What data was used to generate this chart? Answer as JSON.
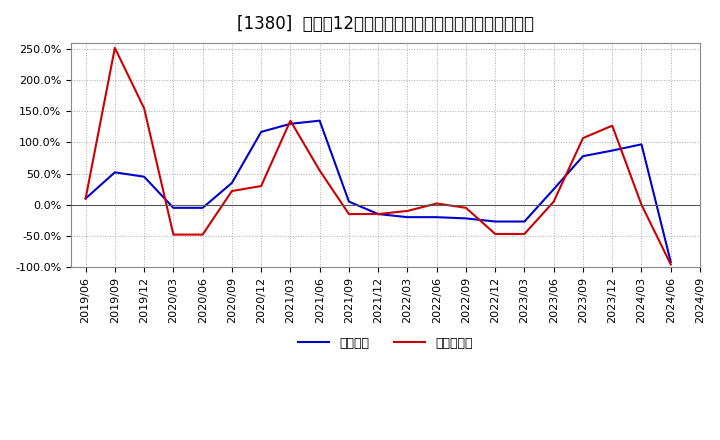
{
  "title": "[1380]  利益の12か月移動合計の対前年同期増減率の推移",
  "xlabel": "",
  "ylabel": "",
  "ylim": [
    -1.0,
    2.6
  ],
  "yticks": [
    -1.0,
    -0.5,
    0.0,
    0.5,
    1.0,
    1.5,
    2.0,
    2.5
  ],
  "ytick_labels": [
    "-100.0%",
    "-50.0%",
    "0.0%",
    "50.0%",
    "100.0%",
    "150.0%",
    "200.0%",
    "250.0%"
  ],
  "background_color": "#ffffff",
  "plot_bg_color": "#ffffff",
  "grid_color": "#aaaaaa",
  "zero_line_color": "#555555",
  "dates": [
    "2019/06",
    "2019/09",
    "2019/12",
    "2020/03",
    "2020/06",
    "2020/09",
    "2020/12",
    "2021/03",
    "2021/06",
    "2021/09",
    "2021/12",
    "2022/03",
    "2022/06",
    "2022/09",
    "2022/12",
    "2023/03",
    "2023/06",
    "2023/09",
    "2023/12",
    "2024/03",
    "2024/06"
  ],
  "x_extra": "2024/09",
  "keijo_rieki": [
    0.1,
    0.52,
    0.45,
    -0.05,
    -0.05,
    0.35,
    1.17,
    1.3,
    1.35,
    0.05,
    -0.15,
    -0.2,
    -0.2,
    -0.22,
    -0.27,
    -0.27,
    0.25,
    0.78,
    0.87,
    0.97,
    -0.92
  ],
  "toki_jun_rieki": [
    0.1,
    2.52,
    1.55,
    -0.48,
    -0.48,
    0.22,
    0.3,
    1.35,
    0.55,
    -0.15,
    -0.15,
    -0.1,
    0.02,
    -0.05,
    -0.47,
    -0.47,
    0.05,
    1.07,
    1.27,
    0.0,
    -0.96
  ],
  "line_color_keijo": "#0000cc",
  "line_color_toki": "#cc0000",
  "line_width": 1.5,
  "legend_keijo": "経常利益",
  "legend_toki": "当期純利益",
  "title_fontsize": 12,
  "tick_fontsize": 8
}
